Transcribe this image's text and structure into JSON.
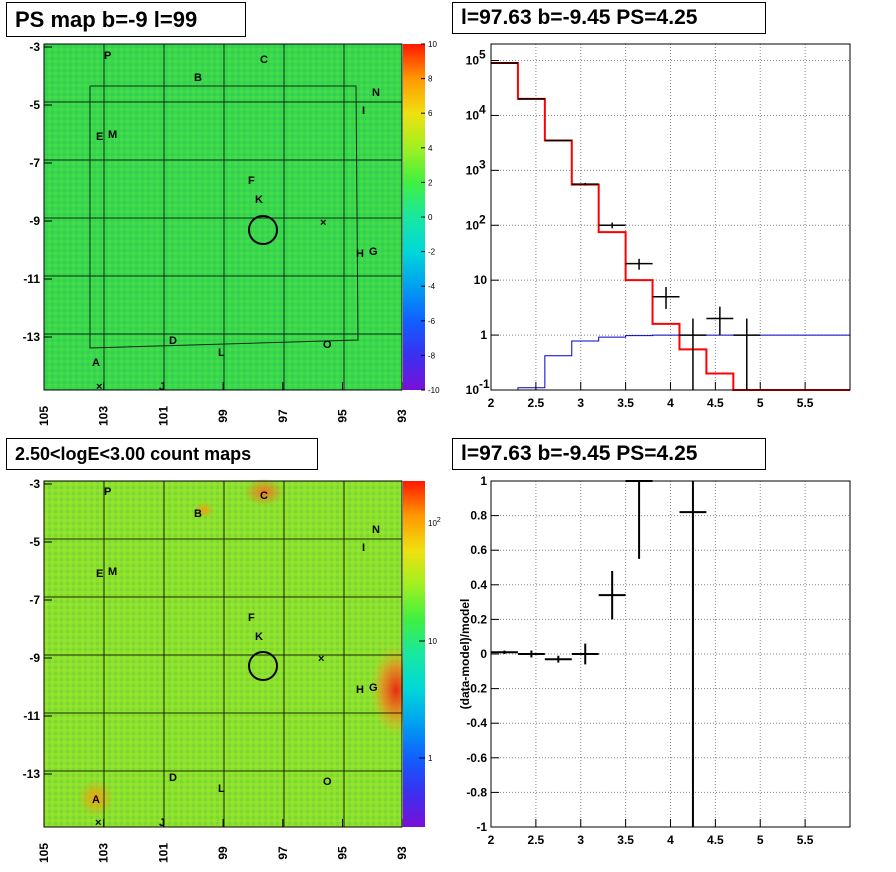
{
  "titles": {
    "tl": "PS map b=-9 l=99",
    "tr": "l=97.63 b=-9.45 PS=4.25",
    "bl": "2.50<logE<3.00 count maps",
    "br": "l=97.63 b=-9.45 PS=4.25"
  },
  "chart_data": [
    {
      "id": "ps-map",
      "type": "heatmap",
      "title": "PS map b=-9 l=99",
      "x_ticks": [
        "105",
        "103",
        "101",
        "99",
        "97",
        "95",
        "93"
      ],
      "y_ticks": [
        "-3",
        "-5",
        "-7",
        "-9",
        "-11",
        "-13"
      ],
      "xlim": [
        105,
        93
      ],
      "ylim": [
        -14.8,
        -2.9
      ],
      "colorbar": {
        "min": -10,
        "max": 10,
        "ticks": [
          "10",
          "8",
          "6",
          "4",
          "2",
          "0",
          "-2",
          "-4",
          "-6",
          "-8",
          "-10"
        ]
      },
      "dominant_value": 2,
      "source_labels": [
        "P",
        "C",
        "B",
        "N",
        "I",
        "E",
        "M",
        "F",
        "K",
        "H",
        "G",
        "D",
        "L",
        "O",
        "A",
        "J"
      ],
      "marker": {
        "shape": "circle",
        "l": 97.63,
        "b": -9.45
      }
    },
    {
      "id": "spectrum",
      "type": "line",
      "title": "l=97.63 b=-9.45 PS=4.25",
      "y_scale": "log",
      "xlim": [
        2,
        6
      ],
      "ylim": [
        0.1,
        200000
      ],
      "x_ticks": [
        "2",
        "2.5",
        "3",
        "3.5",
        "4",
        "4.5",
        "5",
        "5.5"
      ],
      "y_ticks": [
        {
          "base": "10",
          "exp": "5"
        },
        {
          "base": "10",
          "exp": "4"
        },
        {
          "base": "10",
          "exp": "3"
        },
        {
          "base": "10",
          "exp": "2"
        },
        {
          "base": "10",
          "exp": ""
        },
        {
          "base": "1",
          "exp": ""
        },
        {
          "base": "10",
          "exp": "-1"
        }
      ],
      "grid": true,
      "series": [
        {
          "color": "#ff0000",
          "edges": [
            2.0,
            2.3,
            2.6,
            2.9,
            3.2,
            3.5,
            3.8,
            4.1,
            4.4,
            4.7,
            6.0
          ],
          "values": [
            90000,
            20000,
            3500,
            550,
            75,
            10,
            1.6,
            0.55,
            0.2,
            0.1
          ]
        },
        {
          "color": "#0000cc",
          "edges": [
            2.0,
            2.3,
            2.6,
            2.9,
            3.2,
            3.5,
            3.8,
            4.1,
            4.4,
            4.7,
            6.0
          ],
          "values": [
            0.1,
            0.11,
            0.42,
            0.78,
            0.92,
            0.98,
            1.0,
            1.0,
            1.0,
            1.0
          ]
        },
        {
          "color": "#000000",
          "points": [
            {
              "x": 2.15,
              "y": 90000,
              "lo": 89500,
              "hi": 90500,
              "xerr": 0.15
            },
            {
              "x": 2.45,
              "y": 20000,
              "lo": 19800,
              "hi": 20200,
              "xerr": 0.15
            },
            {
              "x": 2.75,
              "y": 3500,
              "lo": 3430,
              "hi": 3570,
              "xerr": 0.15
            },
            {
              "x": 3.05,
              "y": 560,
              "lo": 530,
              "hi": 590,
              "xerr": 0.15
            },
            {
              "x": 3.35,
              "y": 100,
              "lo": 88,
              "hi": 112,
              "xerr": 0.15
            },
            {
              "x": 3.65,
              "y": 20,
              "lo": 15.5,
              "hi": 24.5,
              "xerr": 0.15
            },
            {
              "x": 3.95,
              "y": 5,
              "lo": 3,
              "hi": 7.5,
              "xerr": 0.15
            },
            {
              "x": 4.25,
              "y": 1,
              "lo": 0.1,
              "hi": 2,
              "xerr": 0.15
            },
            {
              "x": 4.55,
              "y": 2,
              "lo": 1,
              "hi": 3.3,
              "xerr": 0.15
            },
            {
              "x": 4.85,
              "y": 1,
              "lo": 0.1,
              "hi": 2,
              "xerr": 0.15
            }
          ]
        }
      ]
    },
    {
      "id": "count-map",
      "type": "heatmap",
      "title": "2.50<logE<3.00 count maps",
      "x_ticks": [
        "105",
        "103",
        "101",
        "99",
        "97",
        "95",
        "93"
      ],
      "y_ticks": [
        "-3",
        "-5",
        "-7",
        "-9",
        "-11",
        "-13"
      ],
      "xlim": [
        105,
        93
      ],
      "ylim": [
        -14.8,
        -2.9
      ],
      "colorbar": {
        "scale": "log",
        "ticks": [
          "10",
          "1"
        ],
        "tick_top": {
          "base": "10",
          "exp": "2"
        }
      },
      "source_labels": [
        "P",
        "C",
        "B",
        "N",
        "I",
        "E",
        "M",
        "F",
        "K",
        "H",
        "G",
        "D",
        "L",
        "O",
        "A",
        "J"
      ],
      "marker": {
        "shape": "circle",
        "l": 97.63,
        "b": -9.45
      }
    },
    {
      "id": "residual",
      "type": "scatter",
      "title": "l=97.63 b=-9.45 PS=4.25",
      "ylabel": "(data-model)/model",
      "xlim": [
        2,
        6
      ],
      "ylim": [
        -1,
        1
      ],
      "x_ticks": [
        "2",
        "2.5",
        "3",
        "3.5",
        "4",
        "4.5",
        "5",
        "5.5"
      ],
      "y_ticks": [
        "1",
        "0.8",
        "0.6",
        "0.4",
        "0.2",
        "0",
        "-0.2",
        "-0.4",
        "-0.6",
        "-0.8",
        "-1"
      ],
      "grid": true,
      "points": [
        {
          "x": 2.15,
          "y": 0.01,
          "lo": 0.0,
          "hi": 0.02,
          "xerr": 0.15
        },
        {
          "x": 2.45,
          "y": 0.0,
          "lo": -0.02,
          "hi": 0.02,
          "xerr": 0.15
        },
        {
          "x": 2.75,
          "y": -0.03,
          "lo": -0.05,
          "hi": -0.01,
          "xerr": 0.15
        },
        {
          "x": 3.05,
          "y": 0.0,
          "lo": -0.06,
          "hi": 0.06,
          "xerr": 0.15
        },
        {
          "x": 3.35,
          "y": 0.34,
          "lo": 0.2,
          "hi": 0.48,
          "xerr": 0.15
        },
        {
          "x": 3.65,
          "y": 1.0,
          "lo": 0.55,
          "hi": 1.0,
          "xerr": 0.15
        },
        {
          "x": 4.25,
          "y": 0.82,
          "lo": -1.0,
          "hi": 1.0,
          "xerr": 0.15
        }
      ]
    }
  ]
}
